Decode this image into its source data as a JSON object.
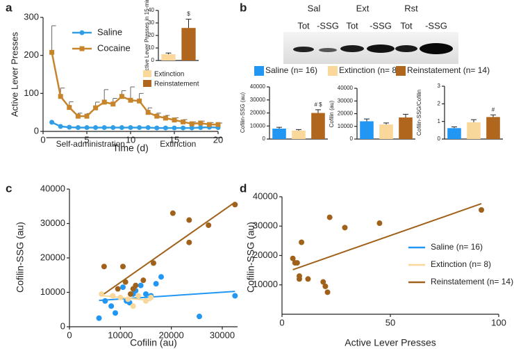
{
  "panels": {
    "a": "a",
    "b": "b",
    "c": "c",
    "d": "d"
  },
  "blot": {
    "groups": [
      "Sal",
      "Ext",
      "Rst"
    ],
    "lanes": [
      "Tot",
      "-SSG",
      "Tot",
      "-SSG",
      "Tot",
      "-SSG"
    ]
  },
  "legend_b": [
    {
      "name": "Saline (n= 16)",
      "color": "#2196f3"
    },
    {
      "name": "Extinction (n= 8)",
      "color": "#fad79a"
    },
    {
      "name": "Reinstatement (n= 14)",
      "color": "#b0661c"
    }
  ],
  "chart_data": [
    {
      "type": "line",
      "x_label": "Time (d)",
      "y_label": "Active Lever Presses",
      "x": [
        1,
        2,
        3,
        4,
        5,
        6,
        7,
        8,
        9,
        10,
        11,
        12,
        13,
        14,
        15,
        16,
        17,
        18,
        19,
        20
      ],
      "series": [
        {
          "name": "Saline",
          "color": "#2f9ee6",
          "marker": "circle",
          "values": [
            24,
            13,
            11,
            10,
            10,
            10,
            10,
            10,
            10,
            10,
            10,
            10,
            9,
            9,
            9,
            9,
            9,
            10,
            11,
            10
          ]
        },
        {
          "name": "Cocaine",
          "color": "#c8842a",
          "marker": "square",
          "values": [
            208,
            92,
            63,
            40,
            40,
            62,
            77,
            72,
            92,
            82,
            80,
            50,
            40,
            35,
            30,
            25,
            20,
            22,
            18,
            18
          ],
          "errors": [
            70,
            22,
            15,
            8,
            7,
            15,
            33,
            15,
            15,
            35,
            20,
            12,
            8,
            7,
            6,
            6,
            5,
            5,
            5,
            4
          ]
        }
      ],
      "xlim": [
        0,
        20
      ],
      "xticks": [
        0,
        5,
        10,
        15,
        20
      ],
      "ylim": [
        0,
        300
      ],
      "yticks": [
        0,
        100,
        200,
        300
      ],
      "phases": [
        {
          "label": "Self-administration",
          "range": [
            1,
            10
          ]
        },
        {
          "label": "Extinction",
          "range": [
            11,
            20
          ]
        }
      ]
    },
    {
      "type": "bar",
      "y_label": "Active Lever Presses in 15-min",
      "categories": [
        "Extinction",
        "Reinstatement"
      ],
      "values": [
        5,
        26
      ],
      "errors": [
        1,
        7
      ],
      "colors": [
        "#fad79a",
        "#b0661c"
      ],
      "annotations": [
        null,
        "$"
      ],
      "ylim": [
        0,
        40
      ],
      "yticks": [
        0,
        10,
        20,
        30,
        40
      ]
    },
    {
      "type": "bar",
      "y_label": "Cofilin-SSG (au)",
      "values": [
        8000,
        6500,
        20000
      ],
      "errors": [
        1000,
        800,
        2500
      ],
      "colors": [
        "#2196f3",
        "#fad79a",
        "#b0661c"
      ],
      "annotations": [
        null,
        null,
        "# $"
      ],
      "ylim": [
        0,
        40000
      ],
      "yticks": [
        0,
        10000,
        20000,
        30000,
        40000
      ]
    },
    {
      "type": "bar",
      "y_label": "Cofilin (au)",
      "values": [
        14000,
        11500,
        17000
      ],
      "errors": [
        1800,
        1200,
        2500
      ],
      "colors": [
        "#2196f3",
        "#fad79a",
        "#b0661c"
      ],
      "ylim": [
        0,
        40000
      ],
      "yticks": [
        0,
        10000,
        20000,
        30000,
        40000
      ]
    },
    {
      "type": "bar",
      "y_label": "Cofilin-SSG/Cofilin",
      "values": [
        0.62,
        0.95,
        1.25
      ],
      "errors": [
        0.07,
        0.15,
        0.12
      ],
      "colors": [
        "#2196f3",
        "#fad79a",
        "#b0661c"
      ],
      "annotations": [
        null,
        null,
        "#"
      ],
      "ylim": [
        0,
        3
      ],
      "yticks": [
        0,
        1,
        2,
        3
      ]
    },
    {
      "type": "scatter",
      "x_label": "Cofilin (au)",
      "y_label": "Cofilin-SSG (au)",
      "xlim": [
        0,
        33000
      ],
      "xticks": [
        0,
        10000,
        20000,
        30000
      ],
      "ylim": [
        0,
        40000
      ],
      "yticks": [
        0,
        10000,
        20000,
        30000,
        40000
      ],
      "series": [
        {
          "name": "Saline (n= 16)",
          "color": "#2196f3",
          "x": [
            5800,
            7000,
            8200,
            9000,
            10500,
            11200,
            11800,
            12500,
            13000,
            14000,
            15000,
            16000,
            17000,
            18000,
            25500,
            32500
          ],
          "values": [
            2500,
            7500,
            6000,
            4000,
            11500,
            7500,
            7000,
            9500,
            10500,
            12000,
            9500,
            9000,
            12500,
            14500,
            3000,
            9000
          ]
        },
        {
          "name": "Extinction (n= 8)",
          "color": "#fad79a",
          "x": [
            6300,
            8500,
            10000,
            11500,
            12500,
            13500,
            15000,
            16000
          ],
          "values": [
            9500,
            9000,
            8500,
            8000,
            6000,
            9000,
            7500,
            8500
          ]
        },
        {
          "name": "Reinstatement (n= 14)",
          "color": "#a0611b",
          "x": [
            6800,
            9500,
            10500,
            11000,
            12000,
            12500,
            13000,
            14500,
            16500,
            20300,
            23500,
            23500,
            27300,
            32500
          ],
          "values": [
            17500,
            11000,
            17500,
            13000,
            9500,
            11000,
            12000,
            13500,
            18500,
            33000,
            31000,
            24500,
            29500,
            35500
          ]
        }
      ]
    },
    {
      "type": "scatter",
      "x_label": "Active Lever Presses",
      "y_label": "Cofilin-SSG (au)",
      "xlim": [
        0,
        100
      ],
      "xticks": [
        0,
        50,
        100
      ],
      "ylim": [
        0,
        40000
      ],
      "yticks": [
        10000,
        20000,
        30000,
        40000
      ],
      "legend": "right",
      "series": [
        {
          "name": "Saline (n= 16)",
          "color": "#2196f3",
          "x": [],
          "values": []
        },
        {
          "name": "Extinction (n= 8)",
          "color": "#fad79a",
          "x": [],
          "values": []
        },
        {
          "name": "Reinstatement (n= 14)",
          "color": "#a0611b",
          "x": [
            5,
            6,
            7,
            9,
            8,
            8,
            12,
            19,
            21,
            20,
            22,
            29,
            45,
            92
          ],
          "values": [
            19000,
            17500,
            17500,
            24500,
            13000,
            12000,
            12000,
            11000,
            7500,
            9500,
            33000,
            29500,
            31000,
            35500
          ]
        }
      ]
    }
  ]
}
